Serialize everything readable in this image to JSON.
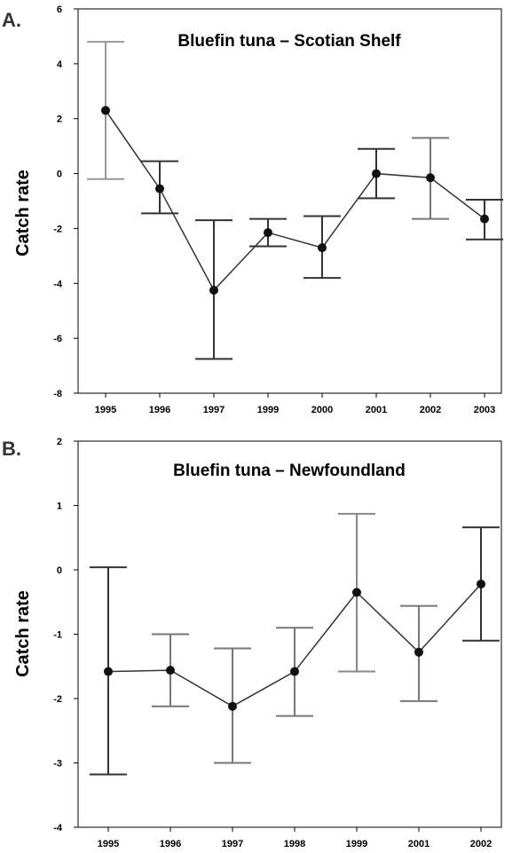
{
  "chart_data": [
    {
      "panel": "A.",
      "type": "line",
      "title": "Bluefin tuna – Scotian Shelf",
      "xlabel": "",
      "ylabel": "Catch rate",
      "categories": [
        "1995",
        "1996",
        "1997",
        "1999",
        "2000",
        "2001",
        "2002",
        "2003"
      ],
      "values": [
        2.3,
        -0.55,
        -4.25,
        -2.15,
        -2.7,
        0.0,
        -0.15,
        -1.65
      ],
      "error_low": [
        -0.2,
        -1.45,
        -6.75,
        -2.65,
        -3.8,
        -0.9,
        -1.65,
        -2.4
      ],
      "error_high": [
        4.8,
        0.45,
        -1.7,
        -1.65,
        -1.55,
        0.9,
        1.3,
        -0.95
      ],
      "ylim": [
        -8,
        6
      ],
      "yticks": [
        -8,
        -6,
        -4,
        -2,
        0,
        2,
        4,
        6
      ],
      "ytick_labels": [
        "-8",
        "-6",
        "-4",
        "-2",
        "0",
        "2",
        "4",
        "6"
      ],
      "grid": false,
      "errorbar_colors": [
        "#999999",
        "#333333",
        "#333333",
        "#333333",
        "#333333",
        "#333333",
        "#777777",
        "#333333"
      ]
    },
    {
      "panel": "B.",
      "type": "line",
      "title": "Bluefin tuna – Newfoundland",
      "xlabel": "",
      "ylabel": "Catch rate",
      "categories": [
        "1995",
        "1996",
        "1997",
        "1998",
        "1999",
        "2001",
        "2002"
      ],
      "values": [
        -1.58,
        -1.56,
        -2.12,
        -1.58,
        -0.35,
        -1.28,
        -0.22
      ],
      "error_low": [
        -3.18,
        -2.12,
        -3.0,
        -2.27,
        -1.58,
        -2.04,
        -1.1
      ],
      "error_high": [
        0.04,
        -1.0,
        -1.22,
        -0.9,
        0.87,
        -0.56,
        0.66
      ],
      "ylim": [
        -4,
        2
      ],
      "yticks": [
        -4,
        -3,
        -2,
        -1,
        0,
        1,
        2
      ],
      "ytick_labels": [
        "-4",
        "-3",
        "-2",
        "-1",
        "0",
        "1",
        "2"
      ],
      "grid": false,
      "errorbar_colors": [
        "#333333",
        "#777777",
        "#777777",
        "#777777",
        "#888888",
        "#777777",
        "#333333"
      ]
    }
  ],
  "style": {
    "marker_color": "#111111",
    "line_color": "#333333"
  }
}
